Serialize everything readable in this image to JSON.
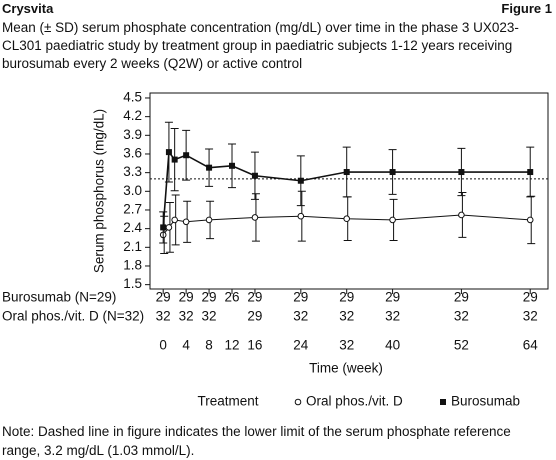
{
  "chart_data": {
    "type": "line",
    "source": "Crysvita",
    "figure_label": "Figure 1",
    "title": "Mean (± SD) serum phosphate concentration (mg/dL) over time in the phase 3 UX023-CL301 paediatric study by treatment group in paediatric subjects 1-12 years receiving burosumab every 2 weeks (Q2W) or active control",
    "x_label": "Time (week)",
    "y_label": "Serum phosphorus (mg/dL)",
    "xlim": [
      -2.3,
      67.1
    ],
    "xticks": [
      0,
      4,
      8,
      12,
      16,
      24,
      32,
      40,
      52,
      64
    ],
    "ylim": [
      1.43,
      4.58
    ],
    "yticks": [
      1.5,
      1.8,
      2.1,
      2.4,
      2.7,
      {
        "value": 3,
        "label": "3.0"
      },
      3.3,
      3.6,
      3.9,
      4.2,
      4.5
    ],
    "reference_line": 3.2,
    "legend_title": "Treatment",
    "series": [
      {
        "name": "Oral phos./vit. D",
        "marker": "circle",
        "color": "#111111",
        "x": [
          0,
          1,
          2,
          4,
          8,
          16,
          24,
          32,
          40,
          52,
          64
        ],
        "values": [
          2.3,
          2.42,
          2.54,
          2.51,
          2.54,
          2.58,
          2.6,
          2.56,
          2.54,
          2.62,
          2.54
        ],
        "errors": [
          0.3,
          0.4,
          0.4,
          0.33,
          0.3,
          0.38,
          0.4,
          0.35,
          0.33,
          0.36,
          0.38
        ]
      },
      {
        "name": "Burosumab",
        "marker": "square",
        "color": "#111111",
        "x": [
          0,
          1,
          2,
          4,
          8,
          12,
          16,
          24,
          32,
          40,
          52,
          64
        ],
        "values": [
          2.42,
          3.63,
          3.51,
          3.58,
          3.38,
          3.41,
          3.25,
          3.17,
          3.31,
          3.31,
          3.31,
          3.31
        ],
        "errors": [
          0.25,
          0.48,
          0.5,
          0.4,
          0.3,
          0.35,
          0.38,
          0.4,
          0.4,
          0.36,
          0.38,
          0.4
        ]
      }
    ],
    "n_at_risk": {
      "x": [
        0,
        4,
        8,
        12,
        16,
        24,
        32,
        40,
        52,
        64
      ],
      "rows": [
        {
          "label": "Burosumab (N=29)",
          "values": [
            29,
            29,
            29,
            26,
            29,
            29,
            29,
            29,
            29,
            29
          ]
        },
        {
          "label": "Oral phos./vit. D (N=32)",
          "values": [
            32,
            32,
            32,
            null,
            29,
            32,
            32,
            32,
            32,
            32
          ]
        }
      ]
    },
    "note": "Note: Dashed line in figure indicates the lower limit of the serum phosphate reference range, 3.2 mg/dL (1.03 mmol/L)."
  }
}
